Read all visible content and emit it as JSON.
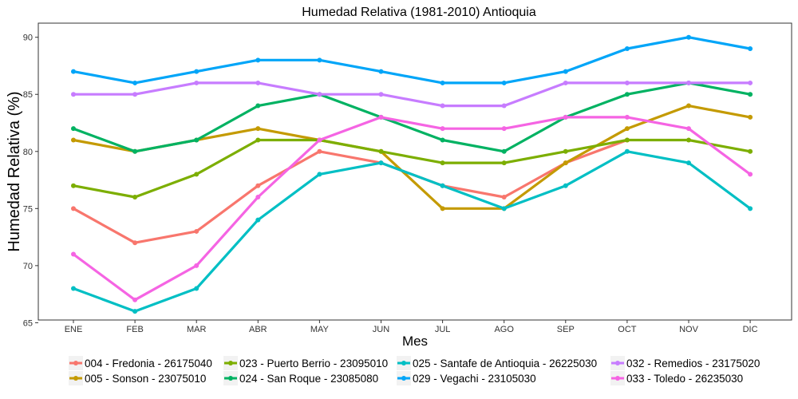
{
  "chart_data": {
    "type": "line",
    "title": "Humedad Relativa (1981-2010)  Antioquia",
    "xlabel": "Mes",
    "ylabel": "Humedad Relativa   (%)",
    "categories": [
      "ENE",
      "FEB",
      "MAR",
      "ABR",
      "MAY",
      "JUN",
      "JUL",
      "AGO",
      "SEP",
      "OCT",
      "NOV",
      "DIC"
    ],
    "ylim": [
      65,
      91
    ],
    "yticks": [
      65,
      70,
      75,
      80,
      85,
      90
    ],
    "grid": false,
    "legend_position": "bottom",
    "series": [
      {
        "name": "004 - Fredonia - 26175040",
        "color": "#F8766D",
        "values": [
          75,
          72,
          73,
          77,
          80,
          79,
          77,
          76,
          79,
          81,
          null,
          null
        ]
      },
      {
        "name": "005 - Sonson - 23075010",
        "color": "#C49A00",
        "values": [
          81,
          80,
          81,
          82,
          81,
          80,
          75,
          75,
          79,
          82,
          84,
          83
        ]
      },
      {
        "name": "023 - Puerto Berrio - 23095010",
        "color": "#7CAE00",
        "values": [
          77,
          76,
          78,
          81,
          81,
          80,
          79,
          79,
          80,
          81,
          81,
          80
        ]
      },
      {
        "name": "024 - San Roque - 23085080",
        "color": "#00B262",
        "values": [
          82,
          80,
          81,
          84,
          85,
          83,
          81,
          80,
          83,
          85,
          86,
          85
        ]
      },
      {
        "name": "025 - Santafe de Antioquia - 26225030",
        "color": "#00BFC4",
        "values": [
          68,
          66,
          68,
          74,
          78,
          79,
          77,
          75,
          77,
          80,
          79,
          75
        ]
      },
      {
        "name": "029 - Vegachi - 23105030",
        "color": "#00A5F8",
        "values": [
          87,
          86,
          87,
          88,
          88,
          87,
          86,
          86,
          87,
          89,
          90,
          89
        ]
      },
      {
        "name": "032 - Remedios - 23175020",
        "color": "#C77CFF",
        "values": [
          85,
          85,
          86,
          86,
          85,
          85,
          84,
          84,
          86,
          86,
          86,
          86
        ]
      },
      {
        "name": "033 - Toledo - 26235030",
        "color": "#F564E3",
        "values": [
          71,
          67,
          70,
          76,
          81,
          83,
          82,
          82,
          83,
          83,
          82,
          78
        ]
      }
    ]
  }
}
